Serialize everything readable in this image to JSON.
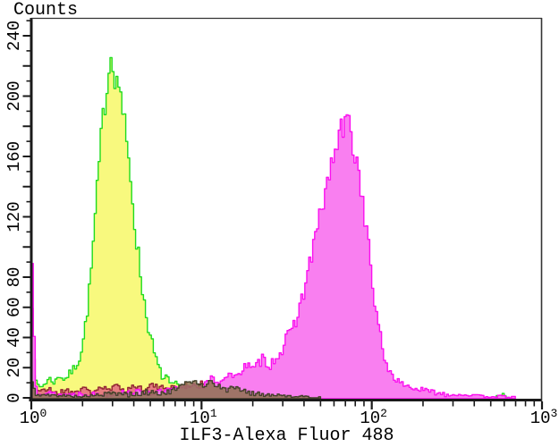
{
  "panel": {
    "y_axis_title": "Counts",
    "x_axis_title": "ILF3-Alexa Fluor 488"
  },
  "chart_data": {
    "type": "area",
    "subtype": "flow-cytometry-histogram-overlay",
    "title": "Counts",
    "xlabel": "ILF3-Alexa Fluor 488",
    "x_scale": "log10",
    "x_domain": [
      1,
      1000
    ],
    "x_tick_labels": [
      "10^0",
      "10^1",
      "10^2",
      "10^3"
    ],
    "x_minor_ticks_per_decade": [
      2,
      3,
      4,
      5,
      6,
      7,
      8,
      9
    ],
    "y_domain": [
      0,
      250
    ],
    "y_major_tick_step": 20,
    "y_minor_tick_step": 10,
    "y_labeled_ticks": [
      0,
      20,
      40,
      60,
      80,
      120,
      160,
      200,
      240
    ],
    "grid": false,
    "legend": false,
    "series": [
      {
        "name": "control-autofluorescence",
        "stroke": "#1edc1e",
        "fill": "#f8f97e",
        "peak_x": 3.0,
        "peak_counts": 233,
        "segments": [
          [
            [
              0.0,
              24
            ],
            [
              0.01,
              18
            ],
            [
              0.025,
              9
            ],
            [
              0.05,
              7
            ],
            [
              0.08,
              10
            ],
            [
              0.1,
              13
            ],
            [
              0.13,
              10
            ],
            [
              0.16,
              15
            ],
            [
              0.19,
              12
            ],
            [
              0.22,
              16
            ],
            [
              0.25,
              20
            ],
            [
              0.28,
              28
            ],
            [
              0.3,
              38
            ],
            [
              0.32,
              55
            ],
            [
              0.34,
              75
            ],
            [
              0.36,
              105
            ],
            [
              0.38,
              135
            ],
            [
              0.4,
              165
            ],
            [
              0.42,
              190
            ],
            [
              0.44,
              210
            ],
            [
              0.455,
              222
            ],
            [
              0.47,
              233
            ],
            [
              0.485,
              215
            ],
            [
              0.5,
              205
            ],
            [
              0.515,
              212
            ],
            [
              0.53,
              190
            ],
            [
              0.545,
              178
            ],
            [
              0.56,
              160
            ],
            [
              0.575,
              150
            ],
            [
              0.59,
              130
            ],
            [
              0.61,
              105
            ],
            [
              0.63,
              88
            ],
            [
              0.65,
              70
            ],
            [
              0.67,
              55
            ],
            [
              0.69,
              42
            ],
            [
              0.71,
              32
            ],
            [
              0.73,
              24
            ],
            [
              0.75,
              18
            ],
            [
              0.77,
              12
            ],
            [
              0.79,
              15
            ],
            [
              0.81,
              8
            ],
            [
              0.84,
              10
            ],
            [
              0.87,
              5
            ],
            [
              0.9,
              7
            ],
            [
              0.93,
              3
            ],
            [
              0.97,
              2
            ],
            [
              1.02,
              3
            ],
            [
              1.08,
              1
            ],
            [
              1.15,
              1
            ],
            [
              1.22,
              0
            ]
          ],
          [
            [
              2.72,
              0
            ],
            [
              2.75,
              2
            ],
            [
              2.77,
              3
            ],
            [
              2.79,
              0
            ]
          ]
        ]
      },
      {
        "name": "negative-noise-red",
        "stroke": "#8f2430",
        "fill": "#e57d80",
        "segments": [
          [
            [
              0.0,
              60
            ],
            [
              0.01,
              30
            ],
            [
              0.02,
              6
            ],
            [
              0.06,
              4
            ],
            [
              0.1,
              6
            ],
            [
              0.15,
              3
            ],
            [
              0.2,
              5
            ],
            [
              0.25,
              4
            ],
            [
              0.3,
              6
            ],
            [
              0.35,
              4
            ],
            [
              0.4,
              7
            ],
            [
              0.45,
              5
            ],
            [
              0.5,
              8
            ],
            [
              0.55,
              5
            ],
            [
              0.6,
              8
            ],
            [
              0.65,
              6
            ],
            [
              0.7,
              9
            ],
            [
              0.75,
              6
            ],
            [
              0.8,
              8
            ],
            [
              0.85,
              6
            ],
            [
              0.9,
              9
            ],
            [
              0.95,
              7
            ],
            [
              1.0,
              10
            ],
            [
              1.05,
              7
            ],
            [
              1.1,
              8
            ],
            [
              1.15,
              6
            ],
            [
              1.2,
              7
            ],
            [
              1.25,
              5
            ],
            [
              1.3,
              6
            ],
            [
              1.35,
              4
            ],
            [
              1.4,
              4
            ],
            [
              1.45,
              3
            ],
            [
              1.5,
              2
            ],
            [
              1.6,
              1
            ],
            [
              1.75,
              0
            ]
          ]
        ]
      },
      {
        "name": "ilf3-positive-sample",
        "stroke": "#fb10ef",
        "fill": "#f97ff0",
        "peak_x": 70,
        "peak_counts": 184,
        "segments": [
          [
            [
              0.0,
              88
            ],
            [
              0.012,
              40
            ],
            [
              0.025,
              4
            ],
            [
              0.1,
              3
            ],
            [
              0.2,
              2
            ],
            [
              0.3,
              3
            ],
            [
              0.4,
              2
            ],
            [
              0.5,
              3
            ],
            [
              0.6,
              4
            ],
            [
              0.7,
              3
            ],
            [
              0.8,
              5
            ],
            [
              0.9,
              7
            ],
            [
              0.95,
              9
            ],
            [
              1.0,
              7
            ],
            [
              1.05,
              13
            ],
            [
              1.1,
              10
            ],
            [
              1.15,
              16
            ],
            [
              1.2,
              13
            ],
            [
              1.25,
              23
            ],
            [
              1.3,
              18
            ],
            [
              1.35,
              26
            ],
            [
              1.4,
              22
            ],
            [
              1.45,
              30
            ],
            [
              1.5,
              38
            ],
            [
              1.55,
              52
            ],
            [
              1.6,
              72
            ],
            [
              1.64,
              95
            ],
            [
              1.68,
              115
            ],
            [
              1.72,
              135
            ],
            [
              1.76,
              155
            ],
            [
              1.8,
              172
            ],
            [
              1.83,
              180
            ],
            [
              1.855,
              184
            ],
            [
              1.88,
              170
            ],
            [
              1.91,
              155
            ],
            [
              1.94,
              132
            ],
            [
              1.97,
              105
            ],
            [
              2.0,
              75
            ],
            [
              2.03,
              48
            ],
            [
              2.06,
              30
            ],
            [
              2.09,
              20
            ],
            [
              2.12,
              14
            ],
            [
              2.16,
              10
            ],
            [
              2.2,
              8
            ],
            [
              2.25,
              6
            ],
            [
              2.3,
              5
            ],
            [
              2.35,
              4
            ],
            [
              2.4,
              3
            ],
            [
              2.45,
              2
            ],
            [
              2.55,
              2
            ],
            [
              2.65,
              1
            ],
            [
              2.75,
              1
            ],
            [
              2.85,
              0
            ]
          ]
        ]
      },
      {
        "name": "negative-noise-dark",
        "stroke": "#43402a",
        "fill": "#8f7250",
        "segments": [
          [
            [
              0.0,
              10
            ],
            [
              0.02,
              2
            ],
            [
              0.3,
              1
            ],
            [
              0.5,
              3
            ],
            [
              0.6,
              2
            ],
            [
              0.7,
              4
            ],
            [
              0.78,
              3
            ],
            [
              0.85,
              6
            ],
            [
              0.9,
              9
            ],
            [
              0.95,
              12
            ],
            [
              1.0,
              8
            ],
            [
              1.05,
              11
            ],
            [
              1.1,
              7
            ],
            [
              1.15,
              5
            ],
            [
              1.2,
              8
            ],
            [
              1.25,
              4
            ],
            [
              1.3,
              3
            ],
            [
              1.4,
              2
            ],
            [
              1.55,
              1
            ],
            [
              1.7,
              0
            ]
          ]
        ]
      }
    ]
  },
  "colors": {
    "background": "#ffffff",
    "axis": "#1a1a1a",
    "text": "#000000"
  }
}
